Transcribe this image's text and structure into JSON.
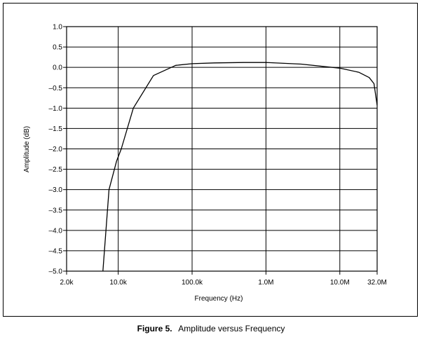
{
  "chart_data": {
    "type": "line",
    "xscale": "log",
    "xlim": [
      2000,
      32000000
    ],
    "ylim": [
      -5.0,
      1.0
    ],
    "xlabel": "Frequency (Hz)",
    "ylabel": "Amplitude (dB)",
    "x_ticks": [
      {
        "value": 2000,
        "label": "2.0k"
      },
      {
        "value": 10000,
        "label": "10.0k"
      },
      {
        "value": 100000,
        "label": "100.0k"
      },
      {
        "value": 1000000,
        "label": "1.0M"
      },
      {
        "value": 10000000,
        "label": "10.0M"
      },
      {
        "value": 32000000,
        "label": "32.0M"
      }
    ],
    "y_ticks": [
      {
        "value": 1.0,
        "label": "1.0"
      },
      {
        "value": 0.5,
        "label": "0.5"
      },
      {
        "value": 0.0,
        "label": "0.0"
      },
      {
        "value": -0.5,
        "label": "–0.5"
      },
      {
        "value": -1.0,
        "label": "–1.0"
      },
      {
        "value": -1.5,
        "label": "–1.5"
      },
      {
        "value": -2.0,
        "label": "–2.0"
      },
      {
        "value": -2.5,
        "label": "–2.5"
      },
      {
        "value": -3.0,
        "label": "–3.0"
      },
      {
        "value": -3.5,
        "label": "–3.5"
      },
      {
        "value": -4.0,
        "label": "–4.0"
      },
      {
        "value": -4.5,
        "label": "–4.5"
      },
      {
        "value": -5.0,
        "label": "–5.0"
      }
    ],
    "grid": true,
    "series": [
      {
        "x": [
          6200,
          7500,
          9500,
          11000,
          16000,
          30000,
          60000,
          100000,
          200000,
          500000,
          1000000,
          3000000,
          10000000,
          18000000,
          25000000,
          29000000,
          32000000
        ],
        "y": [
          -5.0,
          -3.0,
          -2.3,
          -2.0,
          -1.0,
          -0.2,
          0.05,
          0.09,
          0.11,
          0.12,
          0.12,
          0.08,
          -0.02,
          -0.12,
          -0.25,
          -0.4,
          -0.93
        ]
      }
    ]
  },
  "caption": {
    "figure_label": "Figure 5.",
    "text": "Amplitude versus Frequency"
  }
}
